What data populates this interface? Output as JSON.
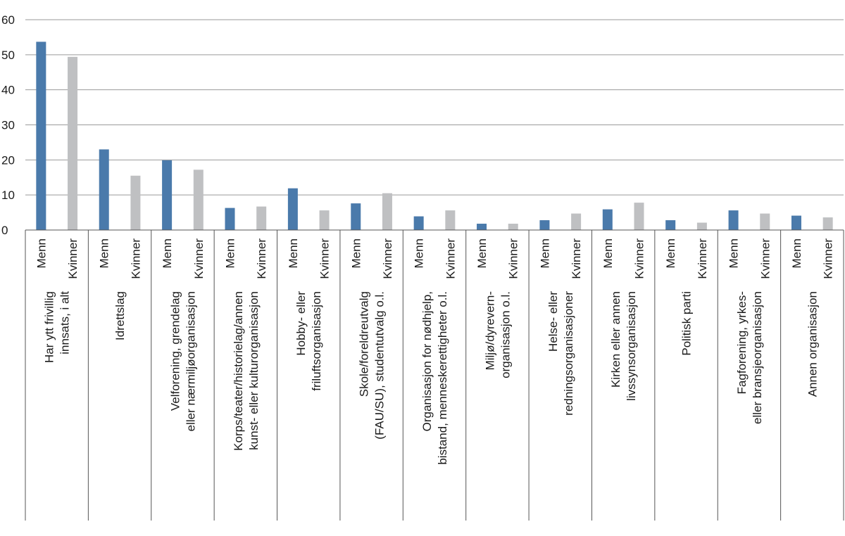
{
  "chart_data": {
    "type": "bar",
    "title": "",
    "xlabel": "",
    "ylabel": "",
    "ylim": [
      0,
      60
    ],
    "yticks": [
      0,
      10,
      20,
      30,
      40,
      50,
      60
    ],
    "grid": true,
    "legend": "none",
    "colors": {
      "Menn": "#4a7aab",
      "Kvinner": "#bfc0c2"
    },
    "subcategories": [
      "Menn",
      "Kvinner"
    ],
    "categories": [
      {
        "lines": [
          "Har ytt frivillig",
          "innsats, i alt"
        ]
      },
      {
        "lines": [
          "Idrettslag"
        ]
      },
      {
        "lines": [
          "Velforening, grendelag",
          "eller nærmiljøorganisasjon"
        ]
      },
      {
        "lines": [
          "Korps/teater/historielag/annen",
          "kunst- eller kulturorganisasjon"
        ]
      },
      {
        "lines": [
          "Hobby- eller",
          "friluftsorganisasjon"
        ]
      },
      {
        "lines": [
          "Skole/foreldreutvalg",
          "(FAU/SU), studentutvalg o.l."
        ]
      },
      {
        "lines": [
          "Organisasjon for nødhjelp,",
          "bistand, menneskerettigheter o.l."
        ]
      },
      {
        "lines": [
          "Miljø/dyrevern-",
          "organisasjon o.l."
        ]
      },
      {
        "lines": [
          "Helse- eller",
          "redningsorganisasjoner"
        ]
      },
      {
        "lines": [
          "Kirken eller annen",
          "livssynsorganisasjon"
        ]
      },
      {
        "lines": [
          "Politisk parti"
        ]
      },
      {
        "lines": [
          "Fagforening, yrkes-",
          "eller bransjeorganisasjon"
        ]
      },
      {
        "lines": [
          "Annen organisasjon"
        ]
      }
    ],
    "series": [
      {
        "name": "Menn",
        "values": [
          53.7,
          23.0,
          19.9,
          6.3,
          11.9,
          7.6,
          3.9,
          1.8,
          2.8,
          5.9,
          2.8,
          5.6,
          4.1
        ]
      },
      {
        "name": "Kvinner",
        "values": [
          49.4,
          15.5,
          17.2,
          6.7,
          5.6,
          10.5,
          5.6,
          1.8,
          4.7,
          7.8,
          2.1,
          4.7,
          3.6
        ]
      }
    ]
  }
}
